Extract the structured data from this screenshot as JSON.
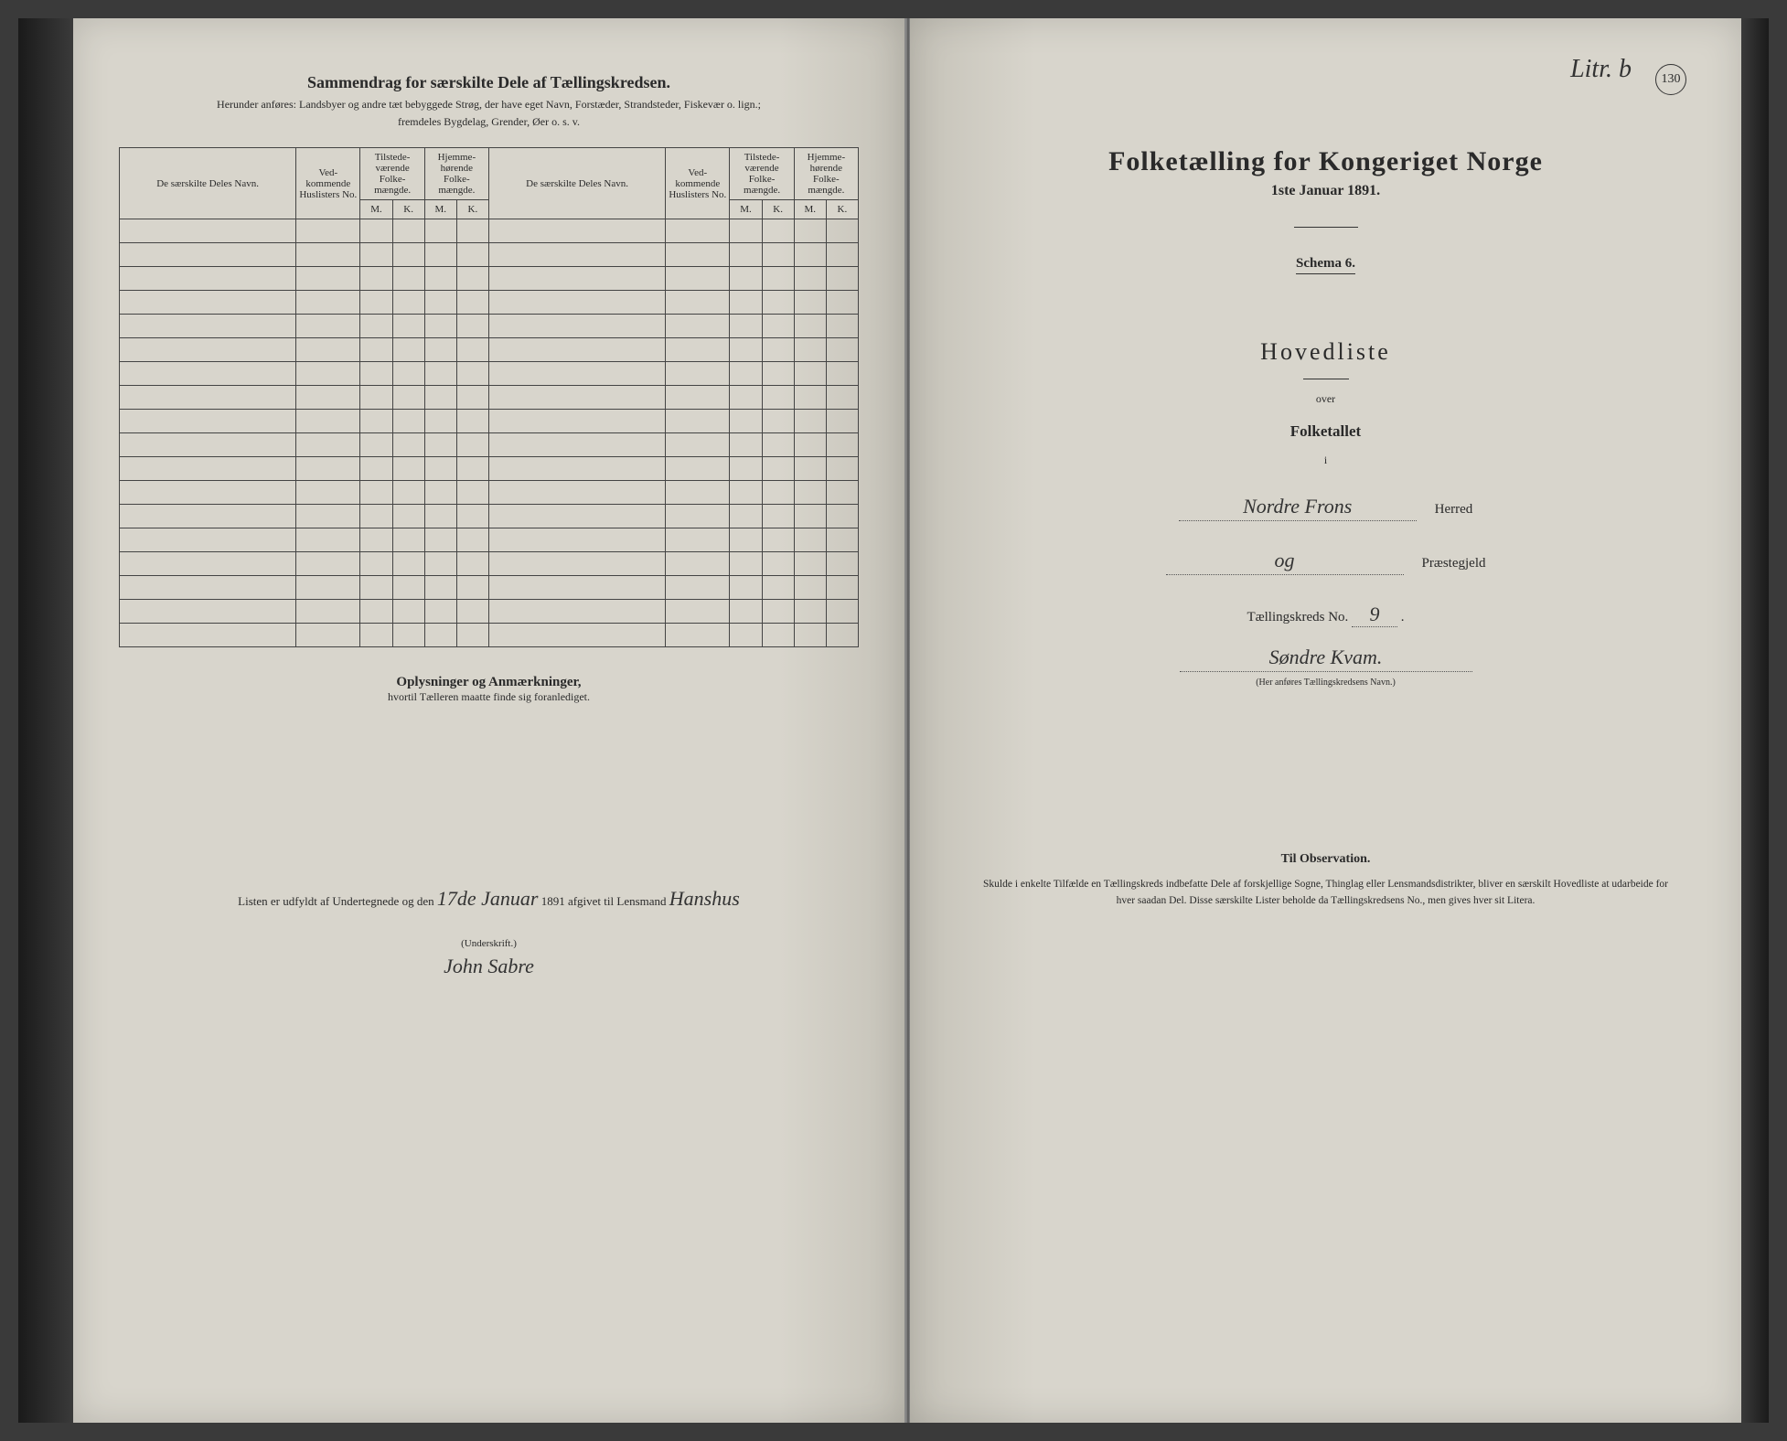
{
  "left": {
    "header": "Sammendrag for særskilte Dele af Tællingskredsen.",
    "sub1": "Herunder anføres: Landsbyer og andre tæt bebyggede Strøg, der have eget Navn, Forstæder, Strandsteder, Fiskevær o. lign.;",
    "sub2": "fremdeles Bygdelag, Grender, Øer o. s. v.",
    "cols": {
      "name": "De særskilte Deles Navn.",
      "no": "Ved-kommende Huslisters No.",
      "tilstede": "Tilstede-værende Folke-mængde.",
      "hjemme": "Hjemme-hørende Folke-mængde.",
      "m": "M.",
      "k": "K."
    },
    "empty_rows": 18,
    "notes_header": "Oplysninger og Anmærkninger,",
    "notes_sub": "hvortil Tælleren maatte finde sig foranlediget.",
    "sig_prefix": "Listen er udfyldt af Undertegnede og den",
    "sig_date": "17de Januar",
    "sig_mid": "1891 afgivet til Lensmand",
    "sig_lensmand": "Hanshus",
    "underskrift_label": "(Underskrift.)",
    "signature": "John Sabre"
  },
  "right": {
    "litr": "Litr. b",
    "page_no": "130",
    "title": "Folketælling for Kongeriget Norge",
    "subtitle": "1ste Januar 1891.",
    "schema": "Schema 6.",
    "hovedliste": "Hovedliste",
    "over": "over",
    "folketallet": "Folketallet",
    "i": "i",
    "herred_value": "Nordre Frons",
    "herred_label": "Herred",
    "praestegjeld_value": "og",
    "praestegjeld_label": "Præstegjeld",
    "kreds_label": "Tællingskreds No.",
    "kreds_no": "9",
    "kreds_name": "Søndre Kvam.",
    "kreds_help": "(Her anføres Tællingskredsens Navn.)",
    "obs_header": "Til Observation.",
    "obs_body": "Skulde i enkelte Tilfælde en Tællingskreds indbefatte Dele af forskjellige Sogne, Thinglag eller Lensmandsdistrikter, bliver en særskilt Hovedliste at udarbeide for hver saadan Del. Disse særskilte Lister beholde da Tællingskredsens No., men gives hver sit Litera."
  },
  "style": {
    "page_bg": "#d8d5cc",
    "text": "#2a2a2a",
    "handwritten_color": "#333333",
    "border": "#444444"
  }
}
